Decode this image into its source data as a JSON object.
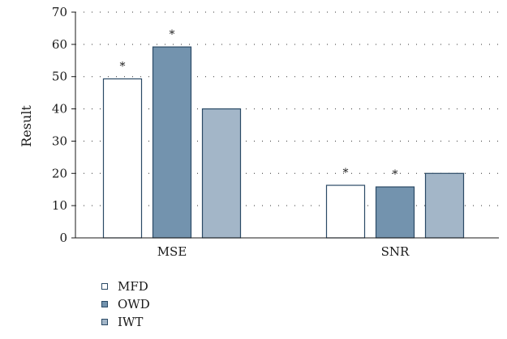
{
  "chart_data": {
    "type": "bar",
    "categories": [
      "MSE",
      "SNR"
    ],
    "series": [
      {
        "name": "MFD",
        "values": [
          49.3,
          16.3
        ],
        "color": "#ffffff",
        "stars": [
          true,
          true
        ]
      },
      {
        "name": "OWD",
        "values": [
          59.2,
          15.8
        ],
        "color": "#7393ae",
        "stars": [
          true,
          true
        ]
      },
      {
        "name": "IWT",
        "values": [
          40.0,
          20.0
        ],
        "color": "#a3b6c8",
        "stars": [
          false,
          false
        ]
      }
    ],
    "star_symbol": "*",
    "xlabel": "",
    "ylabel": "Result",
    "ylim": [
      0,
      70
    ],
    "yticks": [
      "0",
      "10",
      "20",
      "30",
      "40",
      "50",
      "60",
      "70"
    ],
    "grid": "dotted-horizontal",
    "legend_position": "bottom-left",
    "bar_edge_color": "#2b4a66"
  }
}
